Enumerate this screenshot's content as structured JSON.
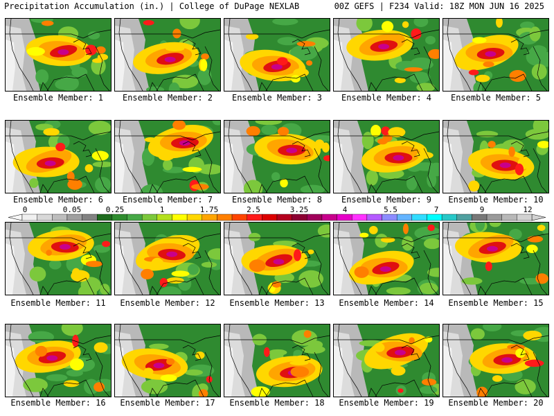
{
  "header": {
    "left": "Precipitation Accumulation (in.) | College of DuPage NEXLAB",
    "right": "00Z GEFS | F234 Valid: 18Z MON JUN 16 2025"
  },
  "panels": [
    "Ensemble Member: 1",
    "Ensemble Member: 2",
    "Ensemble Member: 3",
    "Ensemble Member: 4",
    "Ensemble Member: 5",
    "Ensemble Member: 6",
    "Ensemble Member: 7",
    "Ensemble Member: 8",
    "Ensemble Member: 9",
    "Ensemble Member: 10",
    "Ensemble Member: 11",
    "Ensemble Member: 12",
    "Ensemble Member: 13",
    "Ensemble Member: 14",
    "Ensemble Member: 15",
    "Ensemble Member: 16",
    "Ensemble Member: 17",
    "Ensemble Member: 18",
    "Ensemble Member: 19",
    "Ensemble Member: 20"
  ],
  "colorbar": {
    "labels": [
      "0",
      "0.05",
      "0.25",
      "1",
      "1.75",
      "2.5",
      "3.25",
      "4",
      "5.5",
      "7",
      "9",
      "12"
    ],
    "colors": [
      "#f0f0f0",
      "#d8d8d8",
      "#bdbdbd",
      "#a0a0a0",
      "#828282",
      "#1e6b1e",
      "#2e8b2e",
      "#46a846",
      "#7cc83c",
      "#b4e01e",
      "#ffff00",
      "#ffd700",
      "#ffa500",
      "#ff7f00",
      "#ff4500",
      "#ff1a1a",
      "#dc0000",
      "#b4001e",
      "#8c0032",
      "#a0005a",
      "#c8008c",
      "#e600c8",
      "#ff32ff",
      "#b45aff",
      "#8c8cff",
      "#64b4ff",
      "#32dcff",
      "#00ffff",
      "#28c8c8",
      "#50a0a0",
      "#787878",
      "#9a9a9a",
      "#b8b8b8",
      "#d2d2d2"
    ]
  }
}
